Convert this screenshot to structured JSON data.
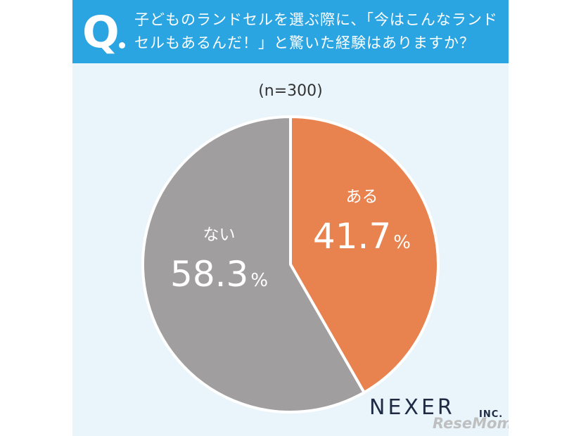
{
  "header": {
    "q_letter": "Q",
    "question": "子どものランドセルを選ぶ際に、「今はこんなランドセルもあるんだ！」と驚いた経験はありますか？"
  },
  "sample_size": "(n=300)",
  "colors": {
    "header_bg": "#2aa5e2",
    "panel_bg": "#eaf5fb",
    "slice_yes": "#e8834f",
    "slice_no": "#a09e9f",
    "brand": "#1f2a44"
  },
  "brand": {
    "name": "NEXER",
    "suffix": "INC."
  },
  "watermark": "ReseMom",
  "chart_data": {
    "type": "pie",
    "categories": [
      "ある",
      "ない"
    ],
    "values": [
      41.7,
      58.3
    ],
    "unit": "%",
    "slices": [
      {
        "label": "ある",
        "value": 41.7,
        "display": "41.7",
        "unit": "%",
        "color": "#e8834f"
      },
      {
        "label": "ない",
        "value": 58.3,
        "display": "58.3",
        "unit": "%",
        "color": "#a09e9f"
      }
    ]
  }
}
